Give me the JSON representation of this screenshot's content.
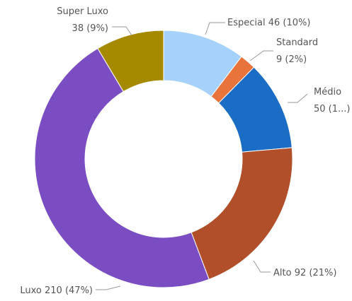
{
  "chart_data": {
    "type": "donut",
    "categories": [
      "Especial",
      "Standard",
      "Médio",
      "Alto",
      "Luxo",
      "Super Luxo"
    ],
    "values": [
      46,
      9,
      50,
      92,
      210,
      38
    ],
    "value_labels": [
      "46 (10%)",
      "9 (2%)",
      "50 (1...)",
      "92 (21%)",
      "210 (47%)",
      "38 (9%)"
    ],
    "colors": [
      "#a6d1fa",
      "#e8743b",
      "#1a6cc4",
      "#b04f2a",
      "#7b4dc3",
      "#a58a00"
    ]
  }
}
